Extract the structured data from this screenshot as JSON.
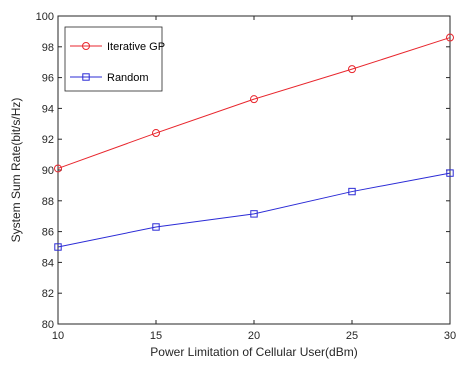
{
  "chart_data": {
    "type": "line",
    "title": "",
    "xlabel": "Power Limitation of Cellular User(dBm)",
    "ylabel": "System Sum Rate(bit/s/Hz)",
    "x": [
      10,
      15,
      20,
      25,
      30
    ],
    "xlim": [
      10,
      30
    ],
    "ylim": [
      80,
      100
    ],
    "xticks": [
      "10",
      "15",
      "20",
      "25",
      "30"
    ],
    "yticks": [
      "80",
      "82",
      "84",
      "86",
      "88",
      "90",
      "92",
      "94",
      "96",
      "98",
      "100"
    ],
    "grid": false,
    "legend_position": "top-left",
    "series": [
      {
        "name": "Iterative GP",
        "values": [
          90.1,
          92.4,
          94.6,
          96.55,
          98.6
        ],
        "color": "#e8262d",
        "marker": "circle"
      },
      {
        "name": "Random",
        "values": [
          85.0,
          86.3,
          87.15,
          88.6,
          89.8
        ],
        "color": "#2b2bd6",
        "marker": "square"
      }
    ]
  }
}
